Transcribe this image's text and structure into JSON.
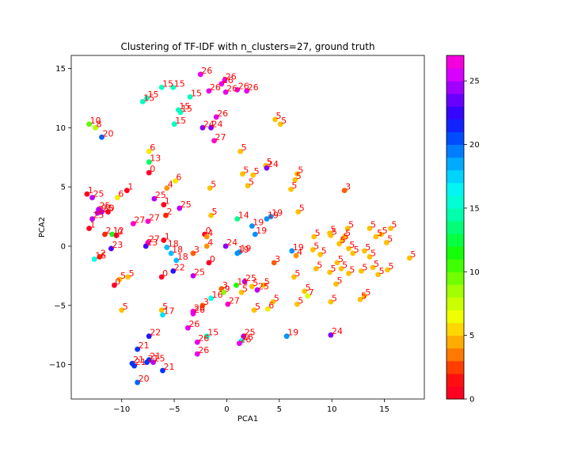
{
  "chart_data": {
    "type": "scatter",
    "title": "Clustering of TF-IDF with n_clusters=27, ground truth",
    "xlabel": "PCA1",
    "ylabel": "PCA2",
    "xlim": [
      -14.8,
      18.8
    ],
    "ylim": [
      -12.9,
      16.1
    ],
    "xticks": [
      -10,
      -5,
      0,
      5,
      10,
      15
    ],
    "yticks": [
      -10,
      -5,
      0,
      5,
      10,
      15
    ],
    "grid": false,
    "colorbar": {
      "min": 0,
      "max": 27,
      "ticks": [
        0,
        5,
        10,
        15,
        20,
        25
      ],
      "colormap": "gist_rainbow"
    },
    "point_label_color": "#ff0000",
    "points": [
      [
        -2.5,
        14.5,
        26
      ],
      [
        -0.2,
        14.0,
        26
      ],
      [
        -0.5,
        13.7,
        26
      ],
      [
        -6.2,
        13.4,
        15
      ],
      [
        -5.1,
        13.4,
        15
      ],
      [
        -1.7,
        13.1,
        26
      ],
      [
        1.0,
        13.2,
        26
      ],
      [
        1.9,
        13.1,
        26
      ],
      [
        -0.1,
        13.0,
        26
      ],
      [
        -7.6,
        12.5,
        15
      ],
      [
        -8.0,
        12.2,
        15
      ],
      [
        -3.5,
        12.6,
        15
      ],
      [
        -4.6,
        11.5,
        15
      ],
      [
        -4.4,
        11.3,
        15
      ],
      [
        -1.0,
        10.9,
        26
      ],
      [
        -5.0,
        10.3,
        15
      ],
      [
        -2.3,
        10.0,
        24
      ],
      [
        -1.5,
        10.0,
        24
      ],
      [
        -13.1,
        10.3,
        10
      ],
      [
        -12.5,
        10.0,
        8
      ],
      [
        -11.9,
        9.2,
        20
      ],
      [
        -1.2,
        8.9,
        27
      ],
      [
        -7.4,
        8.0,
        6
      ],
      [
        -7.4,
        7.1,
        13
      ],
      [
        -7.4,
        6.2,
        0
      ],
      [
        4.6,
        10.7,
        5
      ],
      [
        5.1,
        10.3,
        5
      ],
      [
        1.3,
        8.0,
        5
      ],
      [
        3.7,
        6.8,
        5
      ],
      [
        3.8,
        6.6,
        24
      ],
      [
        1.5,
        6.1,
        5
      ],
      [
        2.5,
        6.0,
        5
      ],
      [
        6.7,
        6.1,
        5
      ],
      [
        6.5,
        5.6,
        5
      ],
      [
        -4.9,
        5.5,
        6
      ],
      [
        -5.7,
        4.9,
        4
      ],
      [
        2.0,
        5.1,
        5
      ],
      [
        6.1,
        4.8,
        5
      ],
      [
        11.2,
        4.7,
        3
      ],
      [
        -1.6,
        4.9,
        5
      ],
      [
        -9.5,
        4.7,
        1
      ],
      [
        -13.3,
        4.4,
        1
      ],
      [
        -12.8,
        4.1,
        25
      ],
      [
        -10.4,
        4.1,
        6
      ],
      [
        -6.9,
        4.0,
        25
      ],
      [
        -6.0,
        3.5,
        1
      ],
      [
        -12.2,
        3.1,
        25
      ],
      [
        -11.9,
        2.9,
        25
      ],
      [
        -11.3,
        2.9,
        0
      ],
      [
        -12.3,
        2.8,
        25
      ],
      [
        -12.8,
        2.3,
        25
      ],
      [
        -4.5,
        3.2,
        25
      ],
      [
        -5.8,
        2.6,
        2
      ],
      [
        -1.5,
        2.6,
        5
      ],
      [
        1.0,
        2.3,
        14
      ],
      [
        3.8,
        2.3,
        19
      ],
      [
        4.2,
        2.5,
        19
      ],
      [
        6.8,
        2.9,
        5
      ],
      [
        -8.9,
        1.9,
        27
      ],
      [
        -7.5,
        2.1,
        27
      ],
      [
        -13.1,
        1.5,
        1
      ],
      [
        -10.9,
        1.0,
        12
      ],
      [
        -11.6,
        1.0,
        2
      ],
      [
        -10.5,
        0.9,
        0
      ],
      [
        -2.1,
        1.0,
        0
      ],
      [
        -1.9,
        0.8,
        4
      ],
      [
        2.4,
        1.7,
        19
      ],
      [
        2.7,
        1.0,
        19
      ],
      [
        8.3,
        0.8,
        5
      ],
      [
        9.8,
        1.1,
        5
      ],
      [
        9.9,
        0.9,
        5
      ],
      [
        11.5,
        1.5,
        5
      ],
      [
        11.2,
        0.8,
        5
      ],
      [
        11.0,
        0.5,
        5
      ],
      [
        13.6,
        1.5,
        5
      ],
      [
        14.7,
        1.0,
        5
      ],
      [
        15.6,
        1.5,
        5
      ],
      [
        14.2,
        0.8,
        5
      ],
      [
        15.2,
        0.3,
        5
      ],
      [
        -6.0,
        0.5,
        1
      ],
      [
        -7.5,
        0.3,
        27
      ],
      [
        -7.7,
        0.0,
        23
      ],
      [
        -5.7,
        -0.1,
        18
      ],
      [
        -5.3,
        -0.6,
        18
      ],
      [
        -11.0,
        -0.2,
        23
      ],
      [
        -1.9,
        0.0,
        4
      ],
      [
        -0.1,
        0.0,
        24
      ],
      [
        1.0,
        -0.6,
        19
      ],
      [
        1.2,
        -0.5,
        19
      ],
      [
        6.2,
        -0.4,
        19
      ],
      [
        6.6,
        -0.8,
        4
      ],
      [
        8.2,
        -0.3,
        5
      ],
      [
        8.9,
        -0.7,
        5
      ],
      [
        10.7,
        0.2,
        5
      ],
      [
        11.6,
        -0.2,
        5
      ],
      [
        12.0,
        -0.6,
        5
      ],
      [
        13.1,
        -0.4,
        5
      ],
      [
        13.6,
        -0.9,
        5
      ],
      [
        -12.1,
        -0.9,
        2
      ],
      [
        -12.6,
        -1.1,
        16
      ],
      [
        -3.2,
        -0.6,
        3
      ],
      [
        -4.8,
        -1.2,
        18
      ],
      [
        4.5,
        -1.4,
        3
      ],
      [
        -1.7,
        -1.4,
        0
      ],
      [
        8.5,
        -1.9,
        5
      ],
      [
        9.8,
        -2.2,
        5
      ],
      [
        10.5,
        -1.4,
        5
      ],
      [
        10.9,
        -1.9,
        5
      ],
      [
        11.6,
        -2.3,
        5
      ],
      [
        12.8,
        -2.1,
        5
      ],
      [
        13.9,
        -1.8,
        5
      ],
      [
        14.4,
        -2.4,
        5
      ],
      [
        17.4,
        -1.0,
        5
      ],
      [
        15.3,
        -2.0,
        5
      ],
      [
        -6.2,
        -2.6,
        0
      ],
      [
        -5.1,
        -2.1,
        22
      ],
      [
        -3.2,
        -2.5,
        25
      ],
      [
        -10.2,
        -2.8,
        5
      ],
      [
        -9.4,
        -2.6,
        5
      ],
      [
        -10.7,
        -3.3,
        0
      ],
      [
        -2.3,
        -5.0,
        3
      ],
      [
        1.7,
        -3.0,
        25
      ],
      [
        2.4,
        -3.4,
        5
      ],
      [
        3.5,
        -3.3,
        5
      ],
      [
        2.9,
        -3.7,
        25
      ],
      [
        6.4,
        -2.6,
        5
      ],
      [
        1.4,
        -3.9,
        5
      ],
      [
        -0.5,
        -3.6,
        3
      ],
      [
        -0.3,
        -3.9,
        9
      ],
      [
        -1.5,
        -4.4,
        16
      ],
      [
        7.4,
        -3.8,
        5
      ],
      [
        0.9,
        -3.3,
        11
      ],
      [
        4.4,
        -4.7,
        5
      ],
      [
        7.7,
        -4.2,
        7
      ],
      [
        10.4,
        -3.2,
        5
      ],
      [
        9.9,
        -4.7,
        5
      ],
      [
        12.7,
        -4.5,
        5
      ],
      [
        13.1,
        -4.2,
        5
      ],
      [
        -10.0,
        -5.4,
        5
      ],
      [
        -6.2,
        -5.4,
        5
      ],
      [
        -3.2,
        -5.5,
        26
      ],
      [
        -3.2,
        -5.7,
        26
      ],
      [
        -6.1,
        -5.8,
        17
      ],
      [
        0.1,
        -4.9,
        27
      ],
      [
        2.6,
        -5.4,
        5
      ],
      [
        6.7,
        -4.9,
        5
      ],
      [
        3.9,
        -5.3,
        6
      ],
      [
        -3.7,
        -6.9,
        26
      ],
      [
        -1.9,
        -7.6,
        15
      ],
      [
        1.6,
        -7.6,
        25
      ],
      [
        1.4,
        -8.0,
        16
      ],
      [
        1.2,
        -8.2,
        26
      ],
      [
        5.7,
        -7.6,
        19
      ],
      [
        9.9,
        -7.5,
        24
      ],
      [
        -7.4,
        -7.6,
        22
      ],
      [
        -2.8,
        -8.1,
        26
      ],
      [
        -8.5,
        -8.7,
        21
      ],
      [
        -2.8,
        -9.1,
        26
      ],
      [
        -7.4,
        -9.6,
        21
      ],
      [
        -7.0,
        -9.8,
        25
      ],
      [
        -9.0,
        -9.9,
        21
      ],
      [
        -8.8,
        -10.1,
        21
      ],
      [
        -7.6,
        -9.8,
        21
      ],
      [
        -6.1,
        -10.5,
        21
      ],
      [
        -8.5,
        -11.5,
        20
      ]
    ]
  }
}
